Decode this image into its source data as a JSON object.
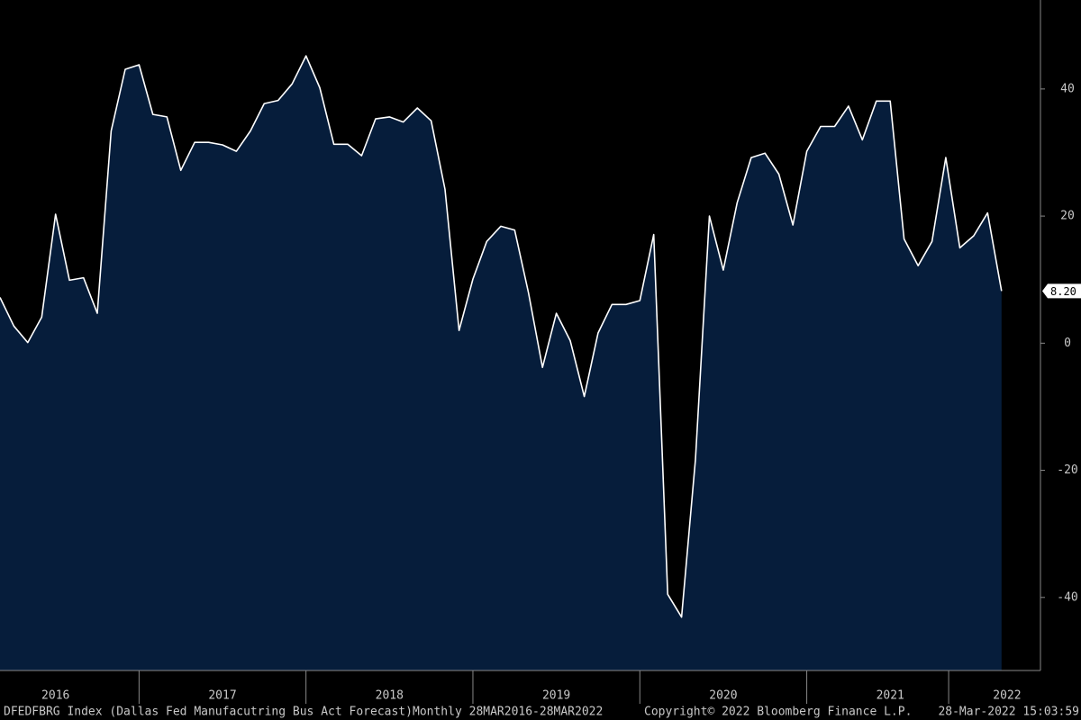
{
  "chart_data": {
    "type": "area",
    "x": [
      2016.167,
      2016.25,
      2016.333,
      2016.417,
      2016.5,
      2016.583,
      2016.667,
      2016.75,
      2016.833,
      2016.917,
      2017.0,
      2017.083,
      2017.167,
      2017.25,
      2017.333,
      2017.417,
      2017.5,
      2017.583,
      2017.667,
      2017.75,
      2017.833,
      2017.917,
      2018.0,
      2018.083,
      2018.167,
      2018.25,
      2018.333,
      2018.417,
      2018.5,
      2018.583,
      2018.667,
      2018.75,
      2018.833,
      2018.917,
      2019.0,
      2019.083,
      2019.167,
      2019.25,
      2019.333,
      2019.417,
      2019.5,
      2019.583,
      2019.667,
      2019.75,
      2019.833,
      2019.917,
      2020.0,
      2020.083,
      2020.167,
      2020.25,
      2020.333,
      2020.417,
      2020.5,
      2020.583,
      2020.667,
      2020.75,
      2020.833,
      2020.917,
      2021.0,
      2021.083,
      2021.167,
      2021.25,
      2021.333,
      2021.417,
      2021.5,
      2021.583,
      2021.667,
      2021.75,
      2021.833,
      2021.917,
      2022.0,
      2022.083,
      2022.167
    ],
    "values": [
      7.2,
      2.7,
      0.1,
      4.1,
      20.3,
      9.9,
      10.3,
      4.7,
      33.4,
      43.1,
      43.8,
      36,
      35.6,
      27.2,
      31.6,
      31.6,
      31.2,
      30.2,
      33.4,
      37.7,
      38.2,
      40.8,
      45.2,
      40.2,
      31.3,
      31.3,
      29.5,
      35.3,
      35.6,
      34.8,
      37,
      35,
      24.2,
      2,
      10.1,
      16,
      18.4,
      17.8,
      7.9,
      -3.8,
      4.7,
      0.4,
      -8.4,
      1.6,
      6.1,
      6.1,
      6.7,
      17.1,
      -39.5,
      -43.1,
      -18.3,
      20,
      11.5,
      22.1,
      29.2,
      29.9,
      26.6,
      18.6,
      30.2,
      34.1,
      34.1,
      37.3,
      32,
      38.1,
      38.1,
      16.4,
      12.2,
      16,
      29.2,
      15,
      16.9,
      20.5,
      8.2
    ],
    "value_labels": [
      null,
      null,
      null,
      null,
      null,
      null,
      null,
      null,
      null,
      null,
      null,
      null,
      null,
      null,
      null,
      null,
      null,
      null,
      null,
      null,
      null,
      null,
      null,
      null,
      null,
      null,
      null,
      null,
      null,
      null,
      null,
      null,
      null,
      null,
      null,
      null,
      null,
      null,
      null,
      null,
      null,
      null,
      null,
      null,
      null,
      null,
      null,
      null,
      null,
      null,
      null,
      null,
      null,
      null,
      null,
      null,
      null,
      null,
      null,
      null,
      null,
      null,
      null,
      null,
      null,
      null,
      null,
      null,
      null,
      null,
      null,
      null,
      "8.20"
    ],
    "color": "#061d3b",
    "line_color": "#ffffff",
    "xlim": [
      2016.167,
      2022.4
    ],
    "xticks": [
      {
        "value": 2016.5,
        "label": "2016"
      },
      {
        "value": 2017.5,
        "label": "2017"
      },
      {
        "value": 2018.5,
        "label": "2018"
      },
      {
        "value": 2019.5,
        "label": "2019"
      },
      {
        "value": 2020.5,
        "label": "2020"
      },
      {
        "value": 2021.5,
        "label": "2021"
      },
      {
        "value": 2022.2,
        "label": "2022"
      }
    ],
    "ylim": [
      -51.5,
      54
    ],
    "yticks": [
      -40,
      -20,
      0,
      20,
      40
    ],
    "footer": [
      "DFEDFBRG Index (Dallas Fed Manufacutring Bus Act Forecast)",
      "Monthly 28MAR2016-28MAR2022",
      "Copyright© 2022 Bloomberg Finance L.P.",
      "28-Mar-2022 15:03:59"
    ]
  }
}
